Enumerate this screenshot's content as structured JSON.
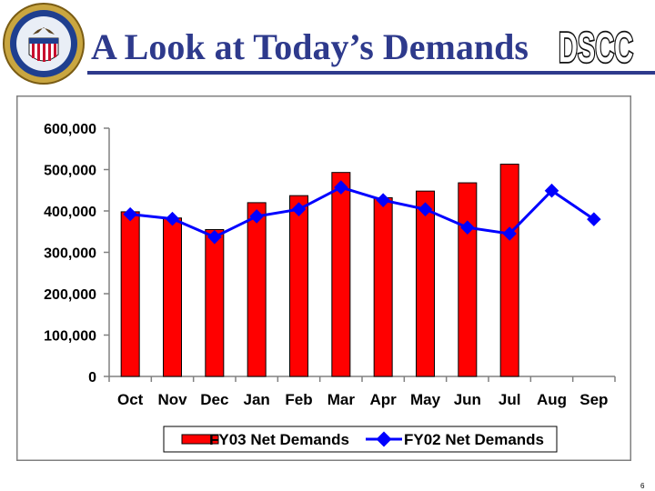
{
  "slide": {
    "title": "A Look at Today’s Demands",
    "logo_text": "DSCC",
    "page_number": "6"
  },
  "colors": {
    "title": "#2e3a8c",
    "bar_fill": "#ff0000",
    "line": "#0000ff"
  },
  "chart_data": {
    "type": "bar",
    "title": "",
    "xlabel": "",
    "ylabel": "",
    "ylim": [
      0,
      600000
    ],
    "yticks": [
      0,
      100000,
      200000,
      300000,
      400000,
      500000,
      600000
    ],
    "ytick_labels": [
      "0",
      "100,000",
      "200,000",
      "300,000",
      "400,000",
      "500,000",
      "600,000"
    ],
    "categories": [
      "Oct",
      "Nov",
      "Dec",
      "Jan",
      "Feb",
      "Mar",
      "Apr",
      "May",
      "Jun",
      "Jul",
      "Aug",
      "Sep"
    ],
    "legend_position": "bottom",
    "grid": false,
    "series": [
      {
        "name": "FY03 Net Demands",
        "kind": "bar",
        "color": "#ff0000",
        "values": [
          398000,
          383000,
          355000,
          420000,
          437000,
          493000,
          432000,
          448000,
          468000,
          513000,
          null,
          null
        ]
      },
      {
        "name": "FY02 Net Demands",
        "kind": "line",
        "color": "#0000ff",
        "values": [
          392000,
          381000,
          337000,
          387000,
          404000,
          457000,
          426000,
          404000,
          360000,
          345000,
          449000,
          380000
        ]
      }
    ]
  }
}
